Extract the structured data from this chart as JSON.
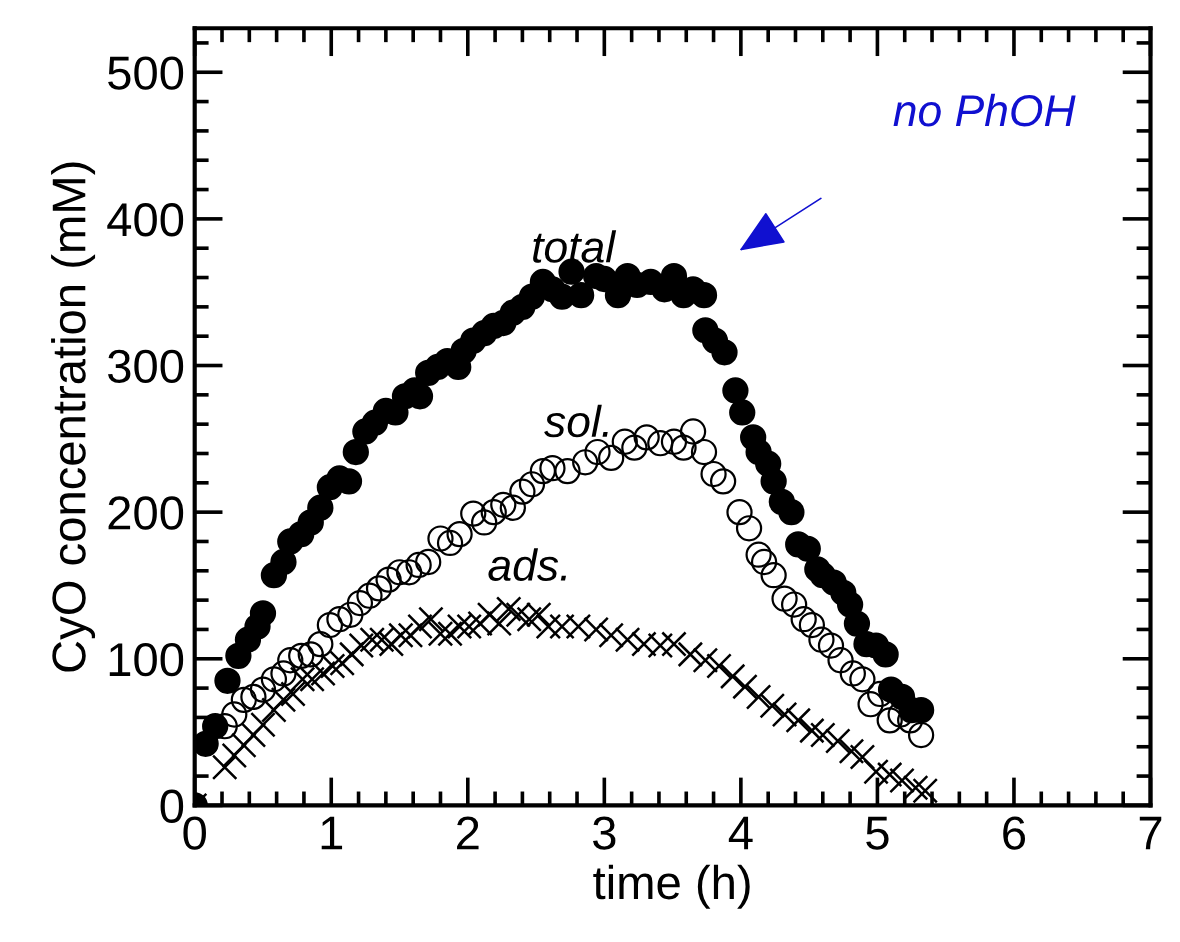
{
  "chart_data": {
    "type": "scatter",
    "xlabel": "time (h)",
    "ylabel": "CyO concentration (mM)",
    "xlim": [
      0,
      7
    ],
    "ylim": [
      0,
      530
    ],
    "xticks": [
      0,
      1,
      2,
      3,
      4,
      5,
      6,
      7
    ],
    "yticks": [
      0,
      100,
      200,
      300,
      400,
      500
    ],
    "grid": false,
    "legend": false,
    "annotations": [
      "no PhOH"
    ],
    "series": [
      {
        "name": "total",
        "color": "#000000",
        "marker": "circle",
        "x": [
          0,
          0.08,
          0.15,
          0.24,
          0.32,
          0.39,
          0.46,
          0.5,
          0.58,
          0.65,
          0.7,
          0.78,
          0.85,
          0.92,
          0.99,
          1.06,
          1.13,
          1.18,
          1.25,
          1.32,
          1.4,
          1.47,
          1.54,
          1.61,
          1.65,
          1.71,
          1.78,
          1.85,
          1.93,
          1.97,
          2.04,
          2.12,
          2.19,
          2.26,
          2.33,
          2.4,
          2.47,
          2.55,
          2.62,
          2.69,
          2.76,
          2.83,
          2.94,
          3.0,
          3.1,
          3.17,
          3.24,
          3.34,
          3.44,
          3.51,
          3.58,
          3.65,
          3.73,
          3.74,
          3.81,
          3.88,
          3.96,
          4.01,
          4.09,
          4.13,
          4.2,
          4.24,
          4.3,
          4.37,
          4.42,
          4.49,
          4.56,
          4.6,
          4.68,
          4.75,
          4.8,
          4.85,
          4.92,
          4.99,
          5.06,
          5.1,
          5.18,
          5.25,
          5.32
        ],
        "values": [
          0,
          42,
          54,
          85,
          102,
          113,
          122,
          131,
          157,
          166,
          180,
          185,
          193,
          203,
          217,
          223,
          221,
          241,
          255,
          261,
          269,
          268,
          279,
          283,
          279,
          295,
          299,
          303,
          299,
          310,
          317,
          322,
          327,
          329,
          336,
          340,
          347,
          357,
          352,
          347,
          364,
          348,
          361,
          359,
          348,
          361,
          355,
          357,
          352,
          361,
          348,
          352,
          348,
          324,
          317,
          309,
          283,
          268,
          251,
          241,
          233,
          221,
          207,
          200,
          178,
          175,
          161,
          157,
          152,
          145,
          137,
          124,
          110,
          109,
          103,
          79,
          74,
          65,
          65
        ]
      },
      {
        "name": "sol.",
        "color": "#000000",
        "marker": "circle",
        "x": [
          0.22,
          0.29,
          0.36,
          0.43,
          0.5,
          0.58,
          0.65,
          0.7,
          0.78,
          0.85,
          0.92,
          0.99,
          1.06,
          1.14,
          1.21,
          1.28,
          1.35,
          1.42,
          1.5,
          1.57,
          1.64,
          1.71,
          1.8,
          1.87,
          1.94,
          2.04,
          2.12,
          2.19,
          2.26,
          2.33,
          2.4,
          2.47,
          2.55,
          2.62,
          2.73,
          2.86,
          2.95,
          3.05,
          3.15,
          3.22,
          3.31,
          3.41,
          3.51,
          3.58,
          3.65,
          3.73,
          3.8,
          3.87,
          3.99,
          4.06,
          4.13,
          4.17,
          4.24,
          4.32,
          4.39,
          4.46,
          4.52,
          4.59,
          4.66,
          4.73,
          4.82,
          4.89,
          4.95,
          5.02,
          5.09,
          5.17,
          5.24,
          5.32
        ],
        "values": [
          54,
          62,
          72,
          74,
          79,
          86,
          90,
          99,
          102,
          103,
          110,
          123,
          127,
          130,
          138,
          143,
          148,
          154,
          159,
          159,
          164,
          166,
          182,
          179,
          185,
          199,
          193,
          200,
          205,
          203,
          214,
          219,
          228,
          230,
          228,
          234,
          241,
          237,
          248,
          244,
          251,
          247,
          248,
          244,
          255,
          241,
          226,
          221,
          200,
          189,
          171,
          166,
          157,
          141,
          137,
          127,
          123,
          113,
          109,
          99,
          90,
          86,
          69,
          76,
          58,
          62,
          58,
          48
        ]
      },
      {
        "name": "ads.",
        "color": "#000000",
        "marker": "cross",
        "x": [
          0,
          0.22,
          0.29,
          0.36,
          0.43,
          0.5,
          0.58,
          0.65,
          0.72,
          0.79,
          0.86,
          0.94,
          1.01,
          1.08,
          1.15,
          1.22,
          1.3,
          1.37,
          1.44,
          1.51,
          1.58,
          1.65,
          1.73,
          1.8,
          1.87,
          1.94,
          2.01,
          2.09,
          2.16,
          2.23,
          2.3,
          2.37,
          2.45,
          2.52,
          2.59,
          2.69,
          2.81,
          2.94,
          3.05,
          3.17,
          3.29,
          3.41,
          3.51,
          3.63,
          3.74,
          3.84,
          3.94,
          4.03,
          4.13,
          4.23,
          4.32,
          4.42,
          4.52,
          4.6,
          4.71,
          4.81,
          4.89,
          4.99,
          5.09,
          5.18,
          5.28,
          5.35
        ],
        "values": [
          0,
          26,
          34,
          41,
          48,
          55,
          65,
          72,
          76,
          86,
          86,
          90,
          95,
          97,
          103,
          109,
          113,
          113,
          110,
          116,
          116,
          122,
          127,
          117,
          117,
          122,
          122,
          124,
          130,
          124,
          134,
          130,
          127,
          130,
          122,
          122,
          122,
          120,
          116,
          113,
          110,
          109,
          110,
          103,
          99,
          95,
          88,
          81,
          74,
          68,
          62,
          58,
          51,
          48,
          44,
          37,
          33,
          23,
          21,
          17,
          12,
          10
        ]
      }
    ]
  }
}
